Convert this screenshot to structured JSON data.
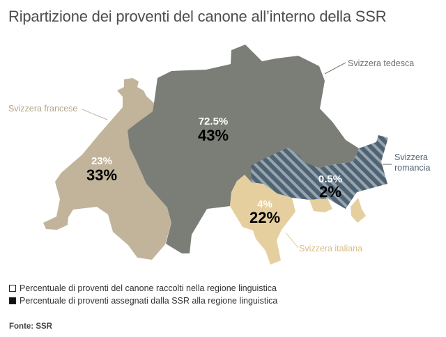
{
  "title": "Ripartizione dei proventi del canone all’interno della SSR",
  "regions": {
    "tedesca": {
      "label": "Svizzera tedesca",
      "collected": "72.5%",
      "assigned": "43%",
      "color": "#7b7d77"
    },
    "francese": {
      "label": "Svizzera francese",
      "collected": "23%",
      "assigned": "33%",
      "color": "#c1b49b"
    },
    "italiana": {
      "label": "Svizzera italiana",
      "collected": "4%",
      "assigned": "22%",
      "color": "#e6cf9f"
    },
    "romancia": {
      "label_line1": "Svizzera",
      "label_line2": "romancia",
      "collected": "0.5%",
      "assigned": "2%",
      "color": "#4f6373"
    }
  },
  "legend": {
    "collected": "Percentuale di proventi del canone raccolti nella regione linguistica",
    "assigned": "Percentuale di proventi assegnati dalla SSR alla regione linguistica"
  },
  "source": "Fonte: SSR"
}
